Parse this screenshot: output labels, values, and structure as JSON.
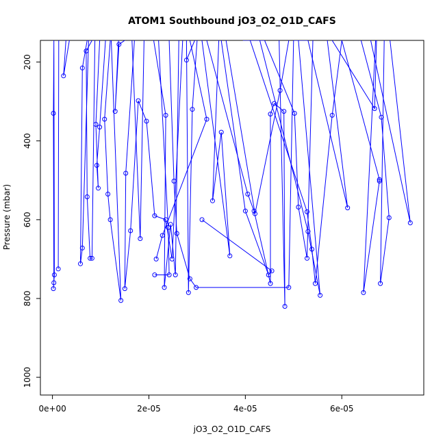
{
  "chart_data": {
    "type": "line",
    "title": "ATOM1 Southbound jO3_O2_O1D_CAFS",
    "xlabel": "jO3_O2_O1D_CAFS",
    "ylabel": "Pressure (mbar)",
    "xlim": [
      -2.5e-06,
      7.7e-05
    ],
    "ylim": [
      1045,
      145
    ],
    "y_reversed": true,
    "grid": false,
    "legend": "none",
    "line_color": "#0000ff",
    "xticks": [
      {
        "value": 0,
        "label": "0e+00"
      },
      {
        "value": 2e-05,
        "label": "2e-05"
      },
      {
        "value": 4e-05,
        "label": "4e-05"
      },
      {
        "value": 6e-05,
        "label": "6e-05"
      }
    ],
    "yticks": [
      {
        "value": 200,
        "label": "200"
      },
      {
        "value": 400,
        "label": "400"
      },
      {
        "value": 600,
        "label": "600"
      },
      {
        "value": 800,
        "label": "800"
      },
      {
        "value": 1000,
        "label": "1000"
      }
    ],
    "series": [
      {
        "points": [
          [
            3e-07,
            145
          ],
          [
            2e-07,
            330
          ],
          [
            3e-07,
            760
          ],
          [
            2e-07,
            775
          ],
          [
            4e-07,
            740
          ],
          [
            3e-07,
            145
          ]
        ]
      },
      {
        "points": [
          [
            1.3e-06,
            145
          ],
          [
            1.2e-06,
            725
          ]
        ]
      },
      {
        "points": [
          [
            3.5e-06,
            145
          ],
          [
            2.3e-06,
            235
          ],
          [
            2.8e-06,
            145
          ]
        ]
      },
      {
        "points": [
          [
            7.2e-06,
            145
          ],
          [
            6.2e-06,
            215
          ],
          [
            5.8e-06,
            712
          ],
          [
            6.2e-06,
            672
          ],
          [
            7.5e-06,
            145
          ]
        ]
      },
      {
        "points": [
          [
            8.2e-06,
            145
          ],
          [
            7e-06,
            172
          ],
          [
            7.2e-06,
            542
          ],
          [
            7.8e-06,
            698
          ],
          [
            8.2e-06,
            698
          ],
          [
            8.8e-06,
            145
          ]
        ]
      },
      {
        "points": [
          [
            9.8e-06,
            145
          ],
          [
            9e-06,
            358
          ],
          [
            9.5e-06,
            520
          ],
          [
            9.2e-06,
            462
          ],
          [
            9.8e-06,
            365
          ],
          [
            1.1e-05,
            145
          ]
        ]
      },
      {
        "points": [
          [
            1.2e-05,
            145
          ],
          [
            1.08e-05,
            345
          ],
          [
            1.15e-05,
            535
          ],
          [
            1.2e-05,
            600
          ],
          [
            1.42e-05,
            805
          ],
          [
            1.22e-05,
            145
          ]
        ]
      },
      {
        "points": [
          [
            1.37e-05,
            145
          ],
          [
            1.3e-05,
            325
          ],
          [
            1.38e-05,
            155
          ],
          [
            1.5e-05,
            145
          ]
        ]
      },
      {
        "points": [
          [
            1.7e-05,
            145
          ],
          [
            1.52e-05,
            482
          ],
          [
            1.5e-05,
            775
          ],
          [
            1.62e-05,
            628
          ],
          [
            1.78e-05,
            298
          ],
          [
            1.95e-05,
            350
          ],
          [
            2.12e-05,
            590
          ],
          [
            2.35e-05,
            600
          ],
          [
            2.48e-05,
            700
          ],
          [
            2.7e-05,
            145
          ]
        ]
      },
      {
        "points": [
          [
            1.9e-05,
            145
          ],
          [
            1.82e-05,
            648
          ],
          [
            1.65e-05,
            145
          ]
        ]
      },
      {
        "points": [
          [
            2.1e-05,
            145
          ],
          [
            2.35e-05,
            335
          ],
          [
            2.32e-05,
            772
          ],
          [
            2.45e-05,
            612
          ],
          [
            2.55e-05,
            740
          ],
          [
            2.62e-05,
            145
          ]
        ]
      },
      {
        "points": [
          [
            2.42e-05,
            145
          ],
          [
            2.52e-05,
            502
          ],
          [
            2.58e-05,
            635
          ],
          [
            2.85e-05,
            750
          ],
          [
            2.98e-05,
            772
          ],
          [
            4.9e-05,
            772
          ],
          [
            5e-05,
            145
          ]
        ]
      },
      {
        "points": [
          [
            2.12e-05,
            740
          ],
          [
            2.42e-05,
            740
          ],
          [
            2.4e-05,
            620
          ],
          [
            2.2e-05,
            145
          ]
        ]
      },
      {
        "points": [
          [
            2.15e-05,
            700
          ],
          [
            2.28e-05,
            640
          ],
          [
            3.2e-05,
            345
          ],
          [
            2.85e-05,
            145
          ]
        ]
      },
      {
        "points": [
          [
            2.78e-05,
            195
          ],
          [
            2.95e-05,
            145
          ]
        ]
      },
      {
        "points": [
          [
            3e-05,
            145
          ],
          [
            2.9e-05,
            320
          ],
          [
            2.82e-05,
            785
          ],
          [
            2.78e-05,
            145
          ]
        ]
      },
      {
        "points": [
          [
            3.1e-05,
            145
          ],
          [
            3.68e-05,
            692
          ],
          [
            3.5e-05,
            378
          ],
          [
            3.32e-05,
            552
          ],
          [
            3.45e-05,
            145
          ]
        ]
      },
      {
        "points": [
          [
            3.2e-05,
            145
          ],
          [
            4.05e-05,
            535
          ],
          [
            4.18e-05,
            578
          ],
          [
            4.52e-05,
            762
          ],
          [
            4.52e-05,
            332
          ],
          [
            4.6e-05,
            305
          ],
          [
            4.8e-05,
            325
          ],
          [
            4.82e-05,
            820
          ],
          [
            4.7e-05,
            145
          ]
        ]
      },
      {
        "points": [
          [
            3.6e-05,
            145
          ],
          [
            4.2e-05,
            585
          ],
          [
            4.72e-05,
            272
          ],
          [
            4.9e-05,
            145
          ]
        ]
      },
      {
        "points": [
          [
            3.95e-05,
            145
          ],
          [
            4.4e-05,
            145
          ],
          [
            5.02e-05,
            330
          ],
          [
            5.1e-05,
            568
          ],
          [
            5.28e-05,
            698
          ],
          [
            5.4e-05,
            145
          ]
        ]
      },
      {
        "points": [
          [
            4.1e-05,
            145
          ],
          [
            5.28e-05,
            580
          ],
          [
            5.38e-05,
            675
          ],
          [
            5.45e-05,
            762
          ],
          [
            5.8e-05,
            335
          ],
          [
            6e-05,
            145
          ]
        ]
      },
      {
        "points": [
          [
            4.3e-05,
            145
          ],
          [
            5.3e-05,
            630
          ],
          [
            5.55e-05,
            792
          ],
          [
            5.1e-05,
            145
          ]
        ]
      },
      {
        "points": [
          [
            3.1e-05,
            600
          ],
          [
            4.55e-05,
            730
          ],
          [
            4.48e-05,
            740
          ],
          [
            4e-05,
            578
          ],
          [
            3.5e-05,
            145
          ]
        ]
      },
      {
        "points": [
          [
            5e-05,
            145
          ],
          [
            5.3e-05,
            145
          ],
          [
            6.12e-05,
            570
          ],
          [
            5.7e-05,
            145
          ]
        ]
      },
      {
        "points": [
          [
            5.8e-05,
            145
          ],
          [
            6.68e-05,
            318
          ],
          [
            6.72e-05,
            145
          ]
        ]
      },
      {
        "points": [
          [
            6e-05,
            145
          ],
          [
            6.78e-05,
            498
          ],
          [
            6.78e-05,
            502
          ],
          [
            6.45e-05,
            785
          ],
          [
            6.7e-05,
            145
          ]
        ]
      },
      {
        "points": [
          [
            6.4e-05,
            145
          ],
          [
            6.82e-05,
            340
          ],
          [
            6.98e-05,
            595
          ],
          [
            6.8e-05,
            762
          ],
          [
            6.88e-05,
            145
          ]
        ]
      },
      {
        "points": [
          [
            6.6e-05,
            145
          ],
          [
            7.42e-05,
            608
          ],
          [
            7e-05,
            145
          ]
        ]
      }
    ]
  }
}
